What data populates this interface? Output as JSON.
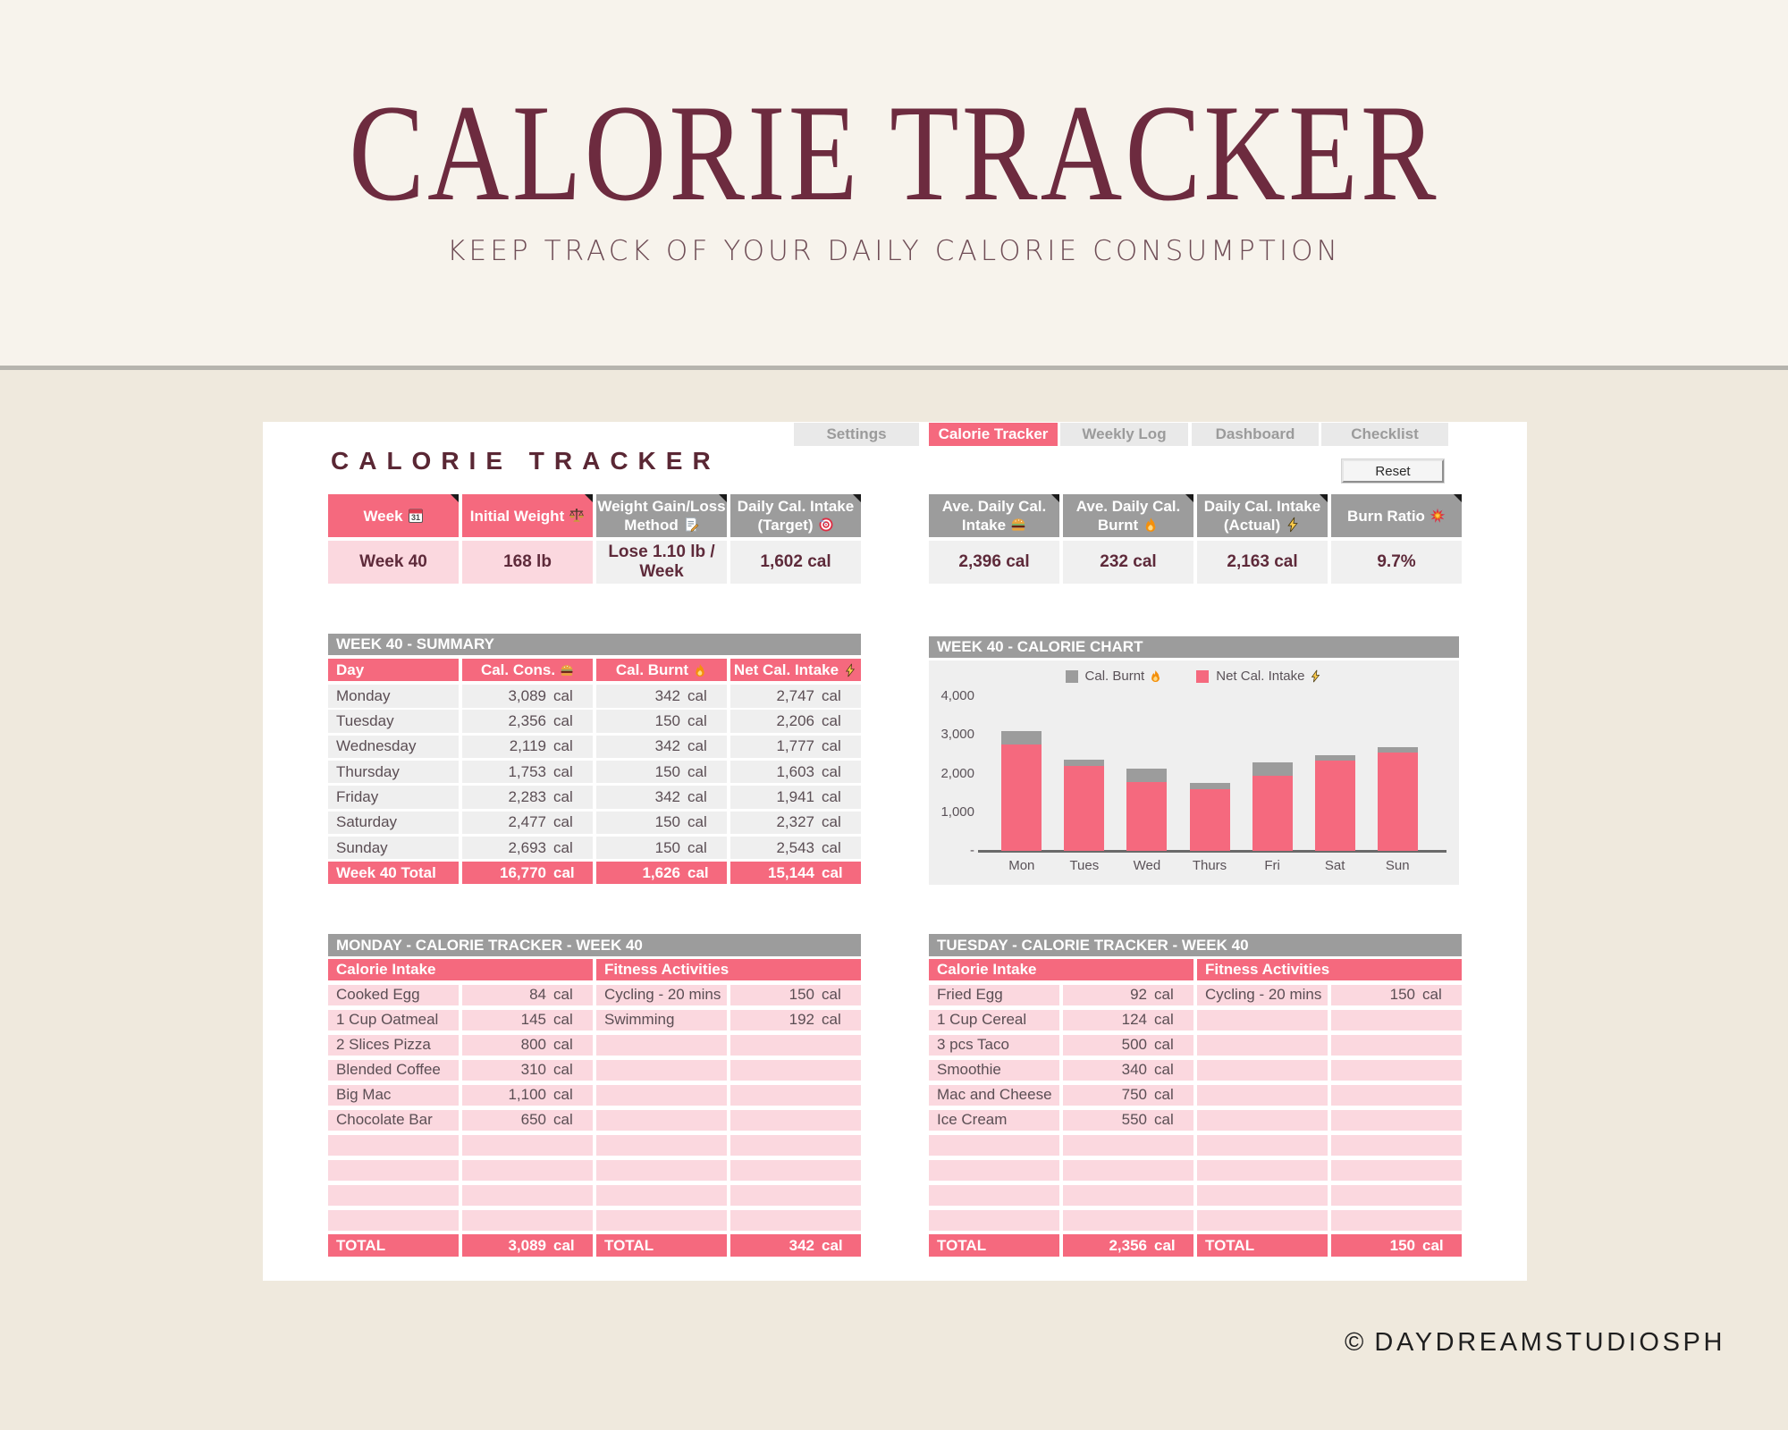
{
  "hero": {
    "title": "CALORIE TRACKER",
    "subtitle": "KEEP TRACK OF YOUR DAILY CALORIE CONSUMPTION"
  },
  "footer": {
    "symbol": "©",
    "credit": "DAYDREAMSTUDIOSPH"
  },
  "colors": {
    "accent_pink": "#f5697e",
    "light_pink": "#fbd8df",
    "header_gray": "#9c9c9c",
    "row_gray": "#efefef",
    "maroon_text": "#5e2a3a",
    "hero_maroon": "#6d2b3f"
  },
  "tabs": [
    {
      "label": "Settings",
      "active": false
    },
    {
      "label": "Calorie Tracker",
      "active": true
    },
    {
      "label": "Weekly Log",
      "active": false
    },
    {
      "label": "Dashboard",
      "active": false
    },
    {
      "label": "Checklist",
      "active": false
    }
  ],
  "sheet": {
    "title": "CALORIE TRACKER",
    "reset_label": "Reset"
  },
  "stats_left": {
    "columns": [
      {
        "label": "Week",
        "icon": "calendar-icon",
        "style": "pink"
      },
      {
        "label": "Initial Weight",
        "icon": "scales-icon",
        "style": "pink"
      },
      {
        "label": "Weight Gain/Loss Method",
        "icon": "memo-icon",
        "style": "gray"
      },
      {
        "label": "Daily Cal. Intake (Target)",
        "icon": "target-icon",
        "style": "gray"
      }
    ],
    "values": [
      {
        "text": "Week 40",
        "style": "pink"
      },
      {
        "text": "168 lb",
        "style": "pink"
      },
      {
        "text": "Lose 1.10 lb / Week",
        "style": "gray"
      },
      {
        "text": "1,602 cal",
        "style": "gray"
      }
    ]
  },
  "stats_right": {
    "columns": [
      {
        "label": "Ave. Daily Cal. Intake",
        "icon": "burger-icon",
        "style": "gray"
      },
      {
        "label": "Ave. Daily Cal. Burnt",
        "icon": "fire-icon",
        "style": "gray"
      },
      {
        "label": "Daily Cal. Intake (Actual)",
        "icon": "lightning-icon",
        "style": "gray"
      },
      {
        "label": "Burn Ratio",
        "icon": "collision-icon",
        "style": "gray"
      }
    ],
    "values": [
      {
        "text": "2,396 cal",
        "style": "gray"
      },
      {
        "text": "232 cal",
        "style": "gray"
      },
      {
        "text": "2,163 cal",
        "style": "gray"
      },
      {
        "text": "9.7%",
        "style": "gray"
      }
    ]
  },
  "summary": {
    "title": "WEEK 40 - SUMMARY",
    "columns": [
      {
        "label": "Day",
        "icon": null
      },
      {
        "label": "Cal. Cons.",
        "icon": "burger-icon"
      },
      {
        "label": "Cal. Burnt",
        "icon": "fire-icon"
      },
      {
        "label": "Net Cal. Intake",
        "icon": "lightning-icon"
      }
    ],
    "unit": "cal",
    "rows": [
      {
        "day": "Monday",
        "cons": "3,089",
        "burnt": "342",
        "net": "2,747"
      },
      {
        "day": "Tuesday",
        "cons": "2,356",
        "burnt": "150",
        "net": "2,206"
      },
      {
        "day": "Wednesday",
        "cons": "2,119",
        "burnt": "342",
        "net": "1,777"
      },
      {
        "day": "Thursday",
        "cons": "1,753",
        "burnt": "150",
        "net": "1,603"
      },
      {
        "day": "Friday",
        "cons": "2,283",
        "burnt": "342",
        "net": "1,941"
      },
      {
        "day": "Saturday",
        "cons": "2,477",
        "burnt": "150",
        "net": "2,327"
      },
      {
        "day": "Sunday",
        "cons": "2,693",
        "burnt": "150",
        "net": "2,543"
      }
    ],
    "total": {
      "label": "Week 40 Total",
      "cons": "16,770",
      "burnt": "1,626",
      "net": "15,144"
    }
  },
  "chart_data": {
    "type": "bar",
    "stacked": true,
    "title": "WEEK 40 - CALORIE CHART",
    "categories": [
      "Mon",
      "Tues",
      "Wed",
      "Thurs",
      "Fri",
      "Sat",
      "Sun"
    ],
    "series": [
      {
        "name": "Cal. Burnt",
        "icon": "fire-icon",
        "color": "#9c9c9c",
        "values": [
          342,
          150,
          342,
          150,
          342,
          150,
          150
        ]
      },
      {
        "name": "Net Cal. Intake",
        "icon": "lightning-icon",
        "color": "#f5697e",
        "values": [
          2747,
          2206,
          1777,
          1603,
          1941,
          2327,
          2543
        ]
      }
    ],
    "ylim": [
      0,
      4000
    ],
    "yticks": [
      {
        "label": "4,000",
        "value": 4000
      },
      {
        "label": "3,000",
        "value": 3000
      },
      {
        "label": "2,000",
        "value": 2000
      },
      {
        "label": "1,000",
        "value": 1000
      },
      {
        "label": "-",
        "value": 0
      }
    ],
    "legend_position": "top",
    "grid": false
  },
  "day_tables": [
    {
      "title": "MONDAY - CALORIE TRACKER - WEEK 40",
      "intake_header": "Calorie Intake",
      "fitness_header": "Fitness Activities",
      "unit": "cal",
      "rows": 10,
      "intake": [
        {
          "item": "Cooked Egg",
          "cal": "84"
        },
        {
          "item": "1 Cup Oatmeal",
          "cal": "145"
        },
        {
          "item": "2 Slices Pizza",
          "cal": "800"
        },
        {
          "item": "Blended Coffee",
          "cal": "310"
        },
        {
          "item": "Big Mac",
          "cal": "1,100"
        },
        {
          "item": "Chocolate Bar",
          "cal": "650"
        }
      ],
      "fitness": [
        {
          "item": "Cycling - 20 mins",
          "cal": "150"
        },
        {
          "item": "Swimming",
          "cal": "192"
        }
      ],
      "total_label": "TOTAL",
      "intake_total": "3,089",
      "fitness_total": "342"
    },
    {
      "title": "TUESDAY - CALORIE TRACKER - WEEK 40",
      "intake_header": "Calorie Intake",
      "fitness_header": "Fitness Activities",
      "unit": "cal",
      "rows": 10,
      "intake": [
        {
          "item": "Fried Egg",
          "cal": "92"
        },
        {
          "item": "1 Cup Cereal",
          "cal": "124"
        },
        {
          "item": "3 pcs Taco",
          "cal": "500"
        },
        {
          "item": "Smoothie",
          "cal": "340"
        },
        {
          "item": "Mac and Cheese",
          "cal": "750"
        },
        {
          "item": "Ice Cream",
          "cal": "550"
        }
      ],
      "fitness": [
        {
          "item": "Cycling - 20 mins",
          "cal": "150"
        }
      ],
      "total_label": "TOTAL",
      "intake_total": "2,356",
      "fitness_total": "150"
    }
  ]
}
